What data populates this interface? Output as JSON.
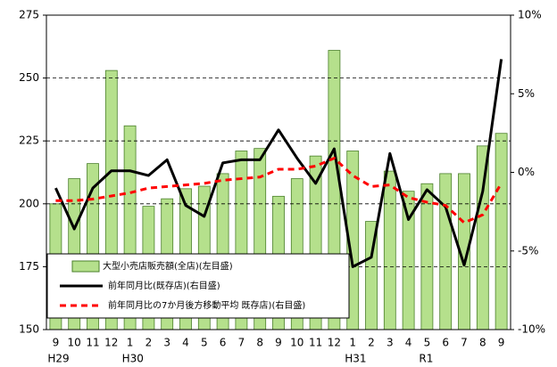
{
  "chart_data": {
    "type": "bar-line",
    "categories": [
      "9",
      "10",
      "11",
      "12",
      "1",
      "2",
      "3",
      "4",
      "5",
      "6",
      "7",
      "8",
      "9",
      "10",
      "11",
      "12",
      "1",
      "2",
      "3",
      "4",
      "5",
      "6",
      "7",
      "8",
      "9"
    ],
    "era": [
      "H29",
      null,
      null,
      null,
      "H30",
      null,
      null,
      null,
      null,
      null,
      null,
      null,
      null,
      null,
      null,
      null,
      "H31",
      null,
      null,
      null,
      "R1",
      null,
      null,
      null,
      null
    ],
    "series": [
      {
        "name": "大型小売店販売額(全店)(左目盛)",
        "type": "bar",
        "color": "#b5e08c",
        "edge": "#4a7f2a",
        "values": [
          200,
          210,
          216,
          253,
          231,
          199,
          202,
          206,
          207,
          212,
          221,
          222,
          203,
          210,
          219,
          261,
          221,
          193,
          213,
          205,
          208,
          212,
          212,
          223,
          228
        ]
      },
      {
        "name": "前年同月比(既存店)(右目盛)",
        "type": "line",
        "axis": "y2",
        "color": "#000000",
        "dashed": false,
        "values": [
          -1.0,
          -3.6,
          -1.0,
          0.1,
          0.1,
          -0.2,
          0.8,
          -2.1,
          -2.8,
          0.6,
          0.8,
          0.8,
          2.7,
          0.9,
          -0.7,
          1.5,
          -6.0,
          -5.4,
          1.2,
          -3.0,
          -1.1,
          -2.2,
          -5.9,
          -1.2,
          7.2
        ]
      },
      {
        "name": "前年同月比の7か月後方移動平均 既存店)(右目盛)",
        "type": "line",
        "axis": "y2",
        "color": "#ff0000",
        "dashed": true,
        "values": [
          -1.8,
          -1.8,
          -1.7,
          -1.5,
          -1.3,
          -1.0,
          -0.9,
          -0.8,
          -0.7,
          -0.5,
          -0.4,
          -0.3,
          0.2,
          0.2,
          0.4,
          0.9,
          -0.2,
          -0.9,
          -0.8,
          -1.6,
          -1.9,
          -2.1,
          -3.2,
          -2.7,
          -0.7
        ]
      }
    ],
    "ylim": [
      150,
      275
    ],
    "yticks": [
      150,
      175,
      200,
      225,
      250,
      275
    ],
    "y2lim": [
      -10,
      10
    ],
    "y2ticks": [
      {
        "value": -10,
        "label": "-10%"
      },
      {
        "value": -5,
        "label": "-5%"
      },
      {
        "value": 0,
        "label": "0%"
      },
      {
        "value": 5,
        "label": "5%"
      },
      {
        "value": 10,
        "label": "10%"
      }
    ],
    "grid": true,
    "legend": "lower left"
  }
}
